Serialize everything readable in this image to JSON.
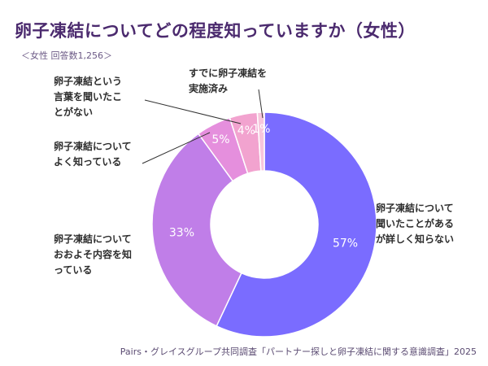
{
  "title": "卵子凍結についてどの程度知っていますか（女性）",
  "subtitle": "＜女性  回答数1,256＞",
  "source": "Pairs・グレイスグループ共同調査「パートナー探しと卵子凍結に関する意識調査」2025",
  "chart_data": {
    "type": "pie",
    "donut": true,
    "categories": [
      "卵子凍結について聞いたことがあるが詳しく知らない",
      "卵子凍結についておおよそ内容を知っている",
      "卵子凍結についてよく知っている",
      "卵子凍結という言葉を聞いたことがない",
      "すでに卵子凍結を実施済み"
    ],
    "values": [
      57,
      33,
      5,
      4,
      1
    ],
    "value_labels": [
      "57%",
      "33%",
      "5%",
      "4%",
      "1%"
    ],
    "category_label_lines": [
      [
        "卵子凍結について",
        "聞いたことがある",
        "が詳しく知らない"
      ],
      [
        "卵子凍結について",
        "おおよそ内容を知",
        "っている"
      ],
      [
        "卵子凍結について",
        "よく知っている"
      ],
      [
        "卵子凍結という",
        "言葉を聞いたこ",
        "とがない"
      ],
      [
        "すでに卵子凍結を",
        "実施済み"
      ]
    ],
    "colors": [
      "#7a6cff",
      "#c07ee8",
      "#e58fdd",
      "#f2a3cf",
      "#f7c6dc"
    ]
  }
}
